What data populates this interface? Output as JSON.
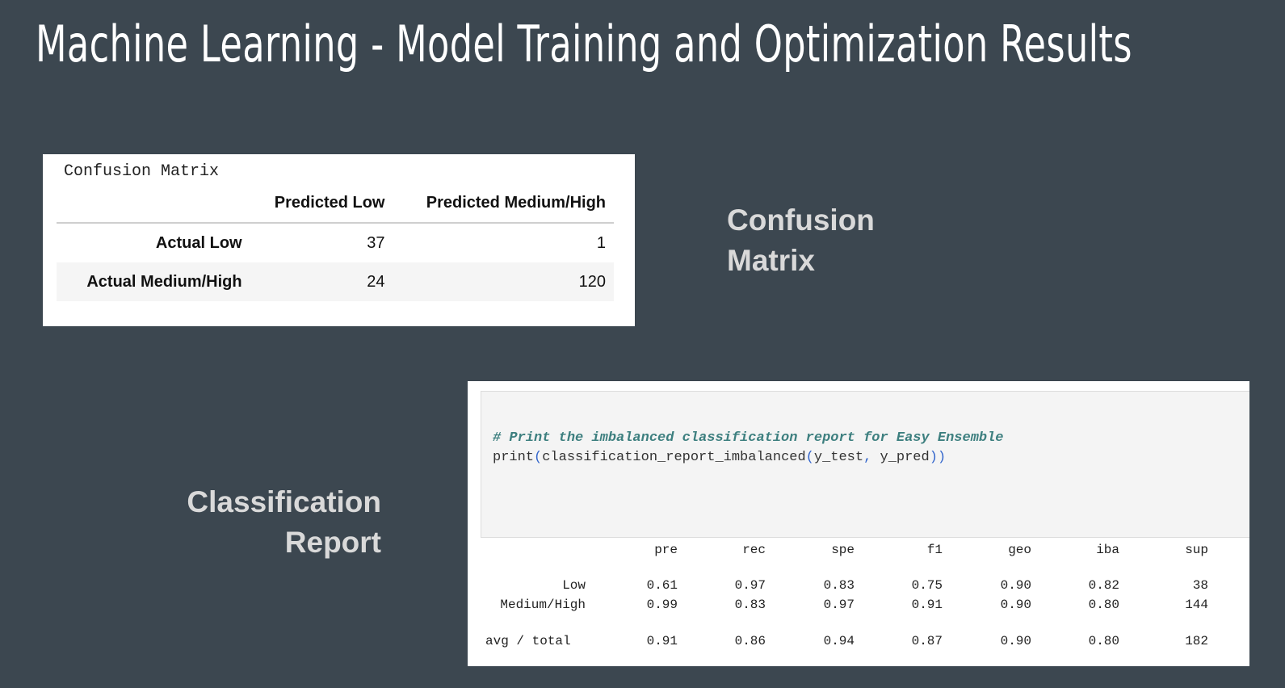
{
  "title": "Machine Learning - Model Training and Optimization Results",
  "labels": {
    "confusion_matrix": [
      "Confusion",
      "Matrix"
    ],
    "classification_report": [
      "Classification",
      "Report"
    ]
  },
  "confusion_matrix": {
    "caption": "Confusion Matrix",
    "columns": [
      "Predicted Low",
      "Predicted Medium/High"
    ],
    "rows": [
      {
        "label": "Actual Low",
        "values": [
          "37",
          "1"
        ]
      },
      {
        "label": "Actual Medium/High",
        "values": [
          "24",
          "120"
        ]
      }
    ]
  },
  "code": {
    "comment": "# Print the imbalanced classification report for Easy Ensemble",
    "func": "print",
    "inner": "classification_report_imbalanced",
    "arg1": "y_test",
    "arg2": "y_pred"
  },
  "report": {
    "columns": [
      "pre",
      "rec",
      "spe",
      "f1",
      "geo",
      "iba",
      "sup"
    ],
    "rows": [
      {
        "label": "Low",
        "values": [
          "0.61",
          "0.97",
          "0.83",
          "0.75",
          "0.90",
          "0.82",
          "38"
        ]
      },
      {
        "label": "Medium/High",
        "values": [
          "0.99",
          "0.83",
          "0.97",
          "0.91",
          "0.90",
          "0.80",
          "144"
        ]
      },
      {
        "label": "avg / total",
        "values": [
          "0.91",
          "0.86",
          "0.94",
          "0.87",
          "0.90",
          "0.80",
          "182"
        ]
      }
    ]
  }
}
